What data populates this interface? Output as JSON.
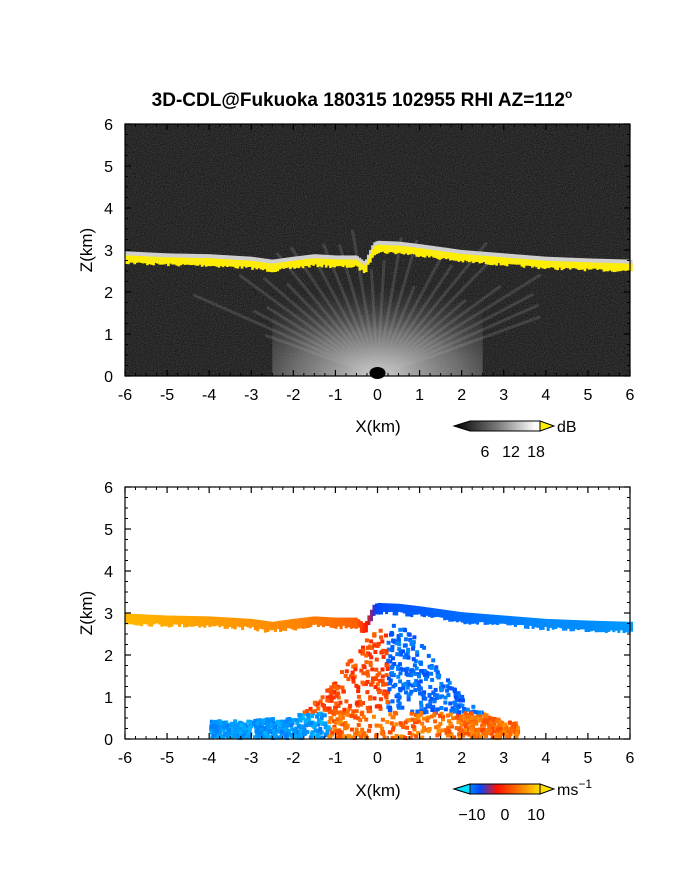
{
  "figure_title": "3D-CDL@Fukuoka 180315 102955 RHI AZ=112",
  "figure_title_degree": "o",
  "chart_data": [
    {
      "type": "heatmap",
      "panel": "top",
      "quantity": "backscatter intensity",
      "xlabel": "X(km)",
      "ylabel": "Z(km)",
      "xlim": [
        -6,
        6
      ],
      "ylim": [
        0,
        6
      ],
      "xticks": [
        "-6",
        "-5",
        "-4",
        "-3",
        "-2",
        "-1",
        "0",
        "1",
        "2",
        "3",
        "4",
        "5",
        "6"
      ],
      "yticks": [
        "0",
        "1",
        "2",
        "3",
        "4",
        "5",
        "6"
      ],
      "colorbar": {
        "unit": "dB",
        "ticks": [
          "6",
          "12",
          "18"
        ],
        "range": [
          0,
          21
        ]
      },
      "cloud_base_height_km": {
        "x": [
          -6,
          -5,
          -4,
          -3,
          -2.5,
          -2,
          -1.5,
          -1,
          -0.5,
          -0.3,
          -0.1,
          0,
          0.5,
          1,
          1.5,
          2,
          3,
          4,
          5,
          6
        ],
        "z": [
          2.85,
          2.8,
          2.78,
          2.72,
          2.65,
          2.72,
          2.78,
          2.75,
          2.75,
          2.6,
          3.05,
          3.1,
          3.08,
          3.02,
          2.95,
          2.88,
          2.8,
          2.72,
          2.68,
          2.65
        ]
      },
      "bright_region_km": {
        "x_range": [
          -2.5,
          2.5
        ],
        "z_range": [
          0,
          2.6
        ]
      }
    },
    {
      "type": "heatmap",
      "panel": "bottom",
      "quantity": "Doppler radial velocity",
      "xlabel": "X(km)",
      "ylabel": "Z(km)",
      "xlim": [
        -6,
        6
      ],
      "ylim": [
        0,
        6
      ],
      "xticks": [
        "-6",
        "-5",
        "-4",
        "-3",
        "-2",
        "-1",
        "0",
        "1",
        "2",
        "3",
        "4",
        "5",
        "6"
      ],
      "yticks": [
        "0",
        "1",
        "2",
        "3",
        "4",
        "5",
        "6"
      ],
      "colorbar": {
        "unit": "ms",
        "unit_exponent": "−1",
        "ticks": [
          "−10",
          "0",
          "10"
        ],
        "range": [
          -15,
          15
        ]
      },
      "cloud_base_velocity_ms": {
        "x": [
          -6,
          -5,
          -4,
          -3,
          -2,
          -1,
          -0.5,
          0,
          0.5,
          1,
          2,
          3,
          4,
          5,
          6
        ],
        "v": [
          12,
          11,
          10,
          9,
          8,
          6,
          5,
          -5,
          -6,
          -6,
          -7,
          -8,
          -9,
          -9,
          -10
        ]
      },
      "lower_region": {
        "x_range": [
          -4,
          3.3
        ],
        "z_range": [
          0,
          2.4
        ]
      }
    }
  ],
  "colors": {
    "yellow_mark": "#ffee00",
    "velocity_neg_light": "#00c8ff",
    "velocity_neg_dark": "#0028ff",
    "velocity_zero": "#ff0000",
    "velocity_pos": "#ffd000"
  }
}
